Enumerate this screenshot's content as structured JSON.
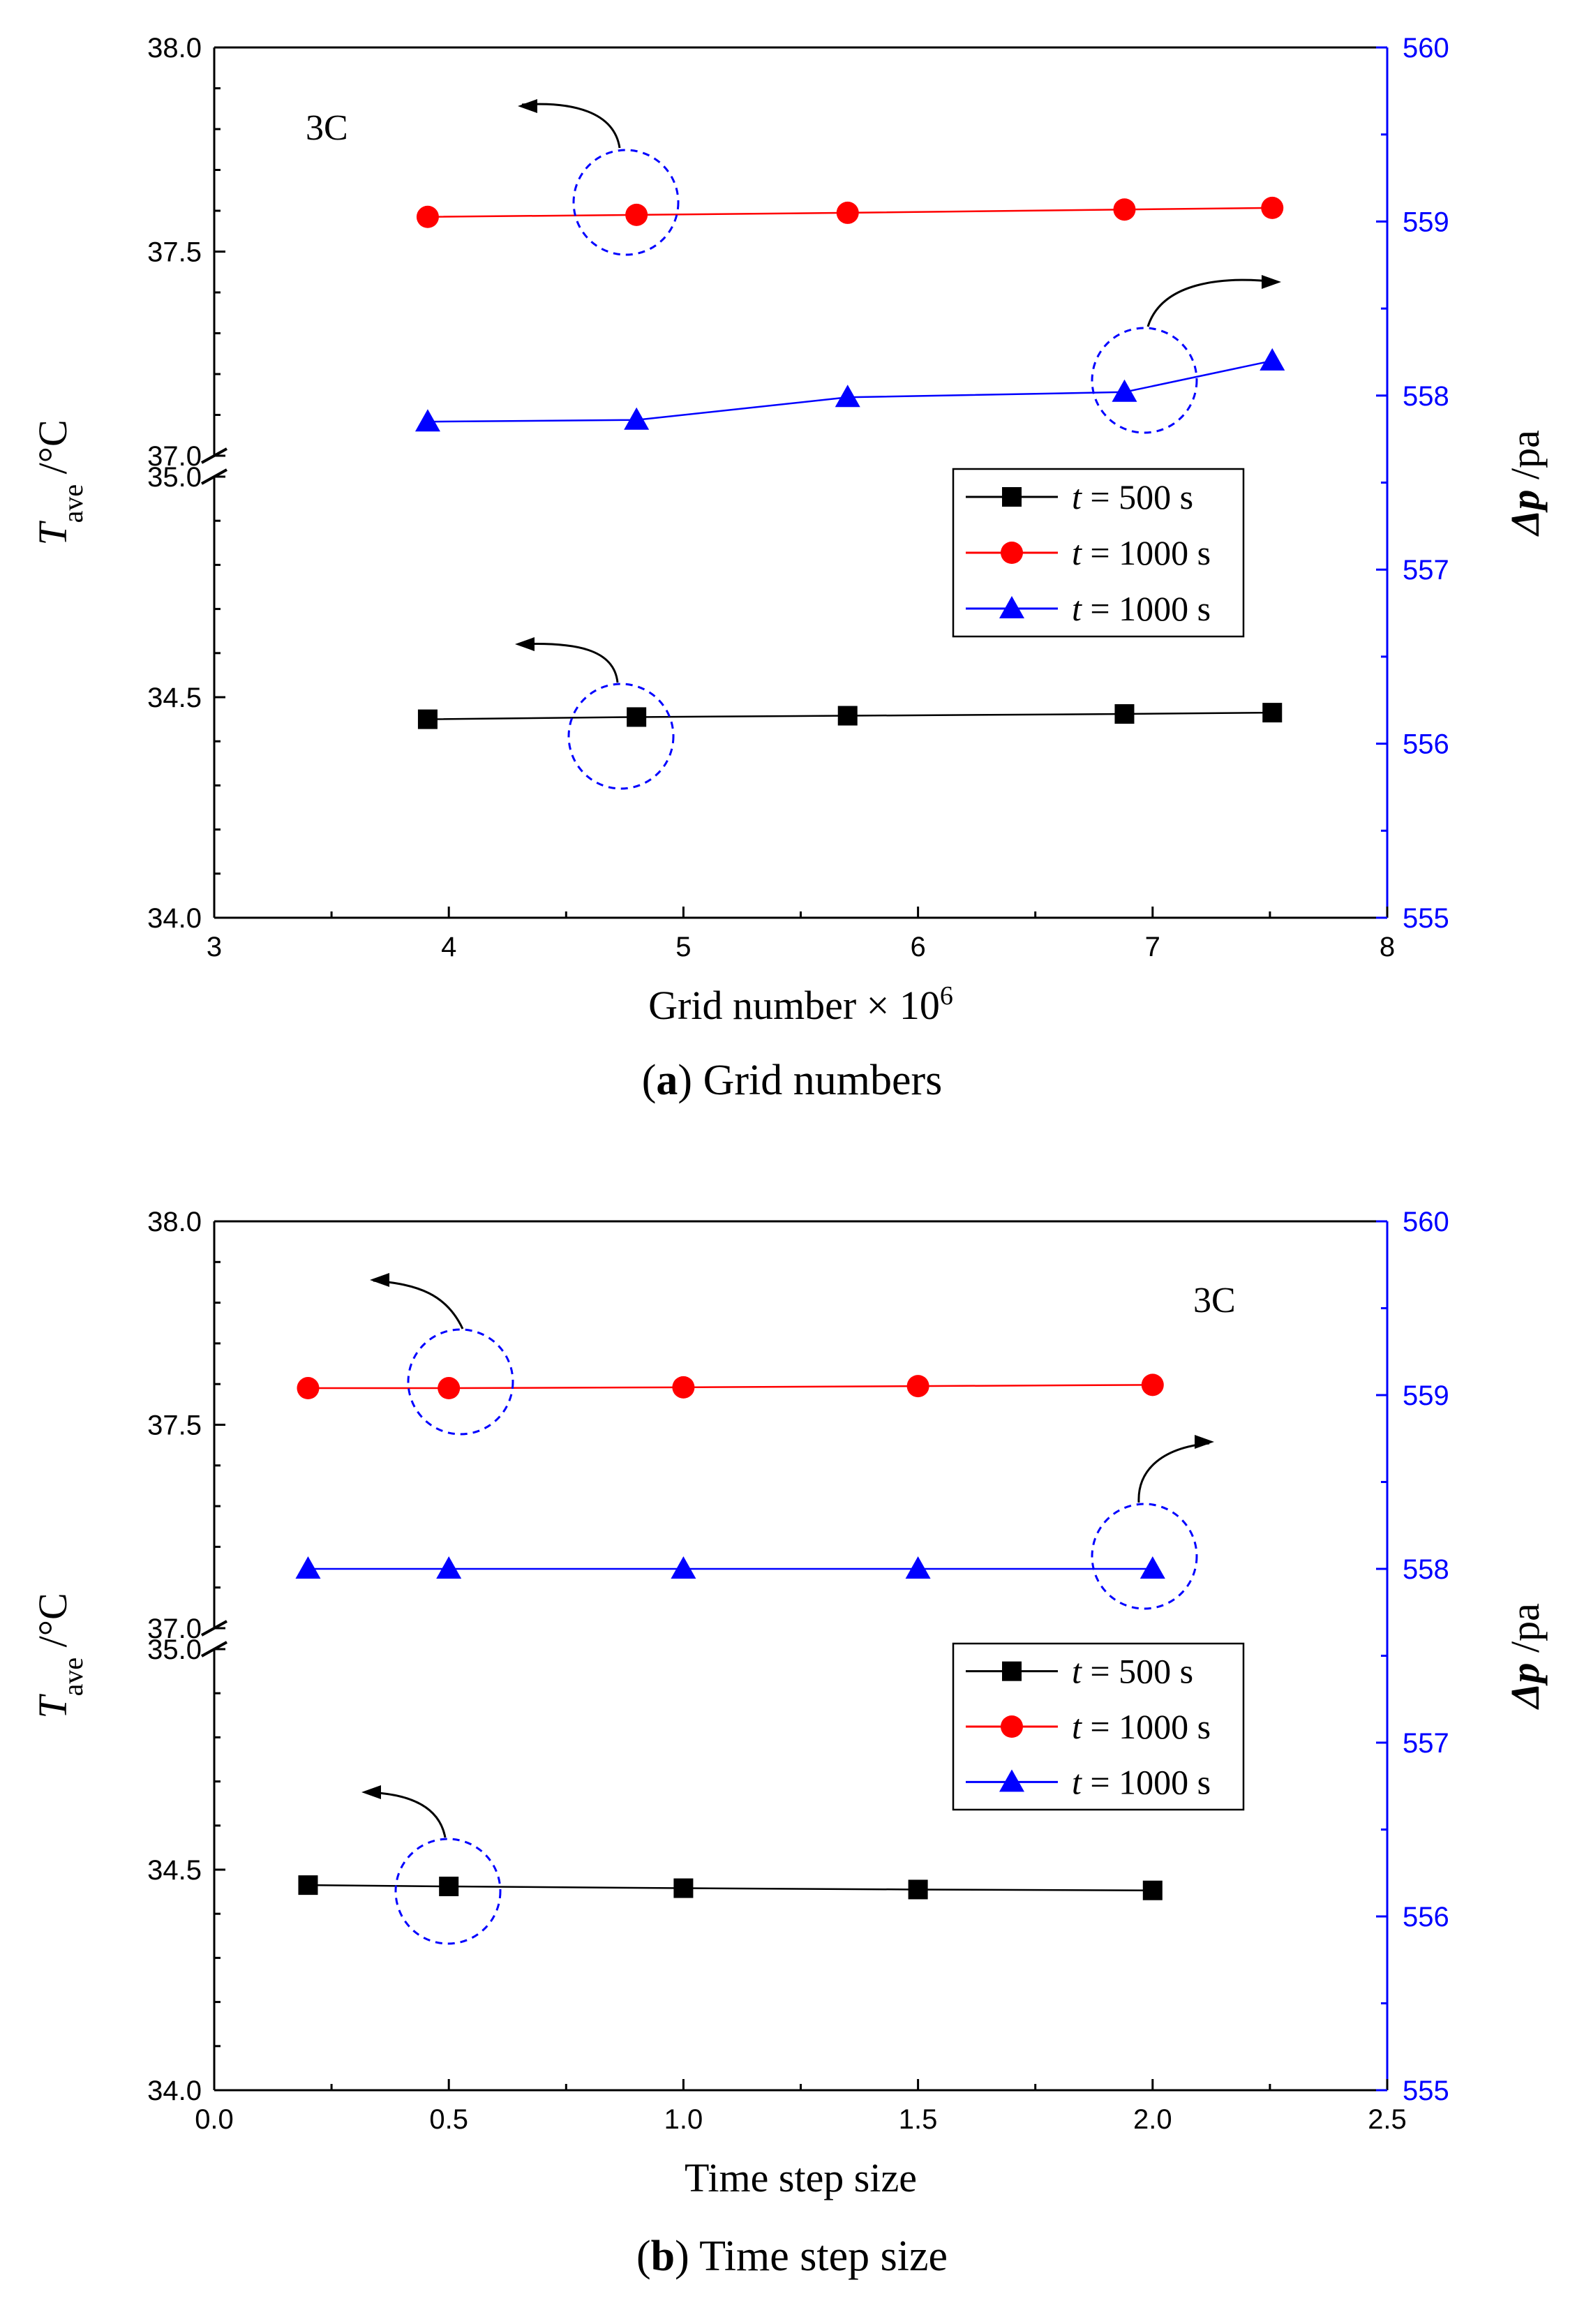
{
  "chart_data": [
    {
      "type": "line",
      "panel_id": "a",
      "caption_letter": "a",
      "caption_text": "Grid numbers",
      "annotation": "3C",
      "xlabel": "Grid number × 10",
      "xlabel_exp": "6",
      "ylabel_left_main": "T",
      "ylabel_left_sub": "ave",
      "ylabel_left_unit": " /°C",
      "ylabel_right_main": "Δp",
      "ylabel_right_unit": " /pa",
      "xlim": [
        3,
        8
      ],
      "xticks": [
        3,
        4,
        5,
        6,
        7,
        8
      ],
      "xtick_labels": [
        "3",
        "4",
        "5",
        "6",
        "7",
        "8"
      ],
      "ylim_upper": [
        37.0,
        38.0
      ],
      "ylim_lower": [
        34.0,
        35.0
      ],
      "yticks_left": [
        34.0,
        34.5,
        35.0,
        37.0,
        37.5,
        38.0
      ],
      "ytick_labels_left": [
        "34.0",
        "34.5",
        "35.0",
        "37.0",
        "37.5",
        "38.0"
      ],
      "ylim_right": [
        555,
        560
      ],
      "yticks_right": [
        555,
        556,
        557,
        558,
        559,
        560
      ],
      "ytick_labels_right": [
        "555",
        "556",
        "557",
        "558",
        "559",
        "560"
      ],
      "x": [
        3.91,
        4.8,
        5.7,
        6.88,
        7.51
      ],
      "series": [
        {
          "name": "t = 500 s",
          "legend_var": "t",
          "legend_rest": " = 500 s",
          "axis": "left",
          "marker": "square",
          "color": "#000000",
          "values": [
            34.45,
            34.455,
            34.458,
            34.462,
            34.465
          ]
        },
        {
          "name": "t = 1000 s",
          "legend_var": "t",
          "legend_rest": " = 1000 s",
          "axis": "left",
          "marker": "circle",
          "color": "#ff0000",
          "values": [
            37.585,
            37.59,
            37.595,
            37.603,
            37.607
          ]
        },
        {
          "name": "t = 1000 s",
          "legend_var": "t",
          "legend_rest": " = 1000 s",
          "axis": "right",
          "marker": "triangle",
          "color": "#0000ff",
          "values": [
            557.85,
            557.86,
            557.99,
            558.02,
            558.2
          ]
        }
      ]
    },
    {
      "type": "line",
      "panel_id": "b",
      "caption_letter": "b",
      "caption_text": "Time step size",
      "annotation": "3C",
      "xlabel": "Time step size",
      "xlabel_exp": "",
      "ylabel_left_main": "T",
      "ylabel_left_sub": "ave",
      "ylabel_left_unit": " /°C",
      "ylabel_right_main": "Δp",
      "ylabel_right_unit": " /pa",
      "xlim": [
        0.0,
        2.5
      ],
      "xticks": [
        0.0,
        0.5,
        1.0,
        1.5,
        2.0,
        2.5
      ],
      "xtick_labels": [
        "0.0",
        "0.5",
        "1.0",
        "1.5",
        "2.0",
        "2.5"
      ],
      "ylim_upper": [
        37.0,
        38.0
      ],
      "ylim_lower": [
        34.0,
        35.0
      ],
      "yticks_left": [
        34.0,
        34.5,
        35.0,
        37.0,
        37.5,
        38.0
      ],
      "ytick_labels_left": [
        "34.0",
        "34.5",
        "35.0",
        "37.0",
        "37.5",
        "38.0"
      ],
      "ylim_right": [
        555,
        560
      ],
      "yticks_right": [
        555,
        556,
        557,
        558,
        559,
        560
      ],
      "ytick_labels_right": [
        "555",
        "556",
        "557",
        "558",
        "559",
        "560"
      ],
      "x": [
        0.2,
        0.5,
        1.0,
        1.5,
        2.0
      ],
      "series": [
        {
          "name": "t = 500 s",
          "legend_var": "t",
          "legend_rest": " = 500 s",
          "axis": "left",
          "marker": "square",
          "color": "#000000",
          "values": [
            34.465,
            34.462,
            34.458,
            34.455,
            34.453
          ]
        },
        {
          "name": "t = 1000 s",
          "legend_var": "t",
          "legend_rest": " = 1000 s",
          "axis": "left",
          "marker": "circle",
          "color": "#ff0000",
          "values": [
            37.59,
            37.59,
            37.592,
            37.595,
            37.598
          ]
        },
        {
          "name": "t = 1000 s",
          "legend_var": "t",
          "legend_rest": " = 1000 s",
          "axis": "right",
          "marker": "triangle",
          "color": "#0000ff",
          "values": [
            558.0,
            558.0,
            558.0,
            558.0,
            558.0
          ]
        }
      ]
    }
  ]
}
